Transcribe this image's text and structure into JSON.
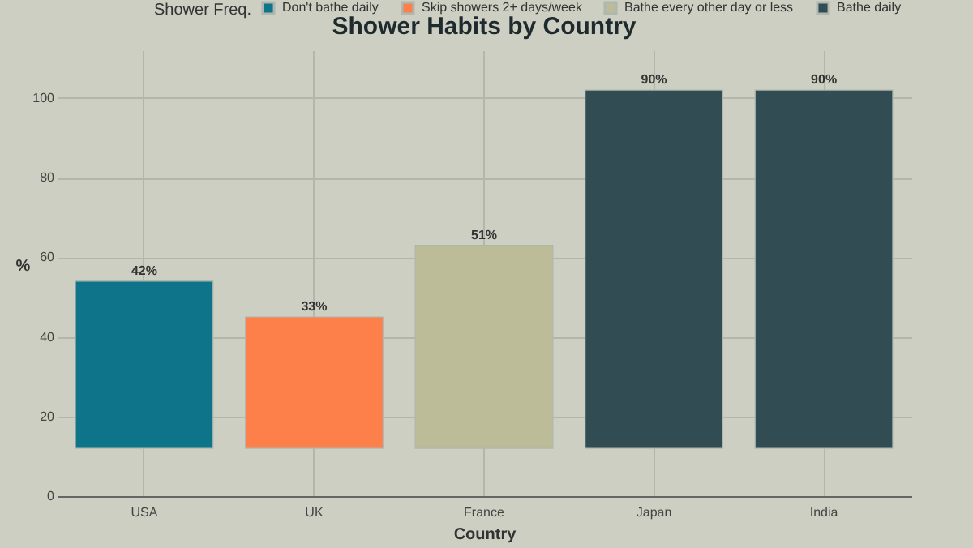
{
  "chart_data": {
    "type": "bar",
    "title": "Shower Habits by Country",
    "xlabel": "Country",
    "ylabel": "%",
    "legend_title": "Shower Freq.",
    "categories": [
      "USA",
      "UK",
      "France",
      "Japan",
      "India"
    ],
    "series": [
      {
        "name": "Don't bathe daily",
        "color": "#0e7489",
        "base": [
          12,
          null,
          null,
          null,
          null
        ],
        "values": [
          42,
          null,
          null,
          null,
          null
        ],
        "value_labels": [
          "42%",
          null,
          null,
          null,
          null
        ]
      },
      {
        "name": "Skip showers 2+ days/week",
        "color": "#fd7f4a",
        "base": [
          null,
          12,
          null,
          null,
          null
        ],
        "values": [
          null,
          33,
          null,
          null,
          null
        ],
        "value_labels": [
          null,
          "33%",
          null,
          null,
          null
        ]
      },
      {
        "name": "Bathe every other day or less",
        "color": "#bdbc98",
        "base": [
          null,
          null,
          12,
          null,
          null
        ],
        "values": [
          null,
          null,
          51,
          null,
          null
        ],
        "value_labels": [
          null,
          null,
          "51%",
          null,
          null
        ]
      },
      {
        "name": "Bathe daily",
        "color": "#314c53",
        "base": [
          null,
          null,
          null,
          12,
          12
        ],
        "values": [
          null,
          null,
          null,
          90,
          90
        ],
        "value_labels": [
          null,
          null,
          null,
          "90%",
          "90%"
        ]
      }
    ],
    "ylim": [
      0,
      112
    ],
    "yticks": [
      0,
      20,
      40,
      60,
      80,
      100
    ],
    "grid": true,
    "legend": "top"
  }
}
